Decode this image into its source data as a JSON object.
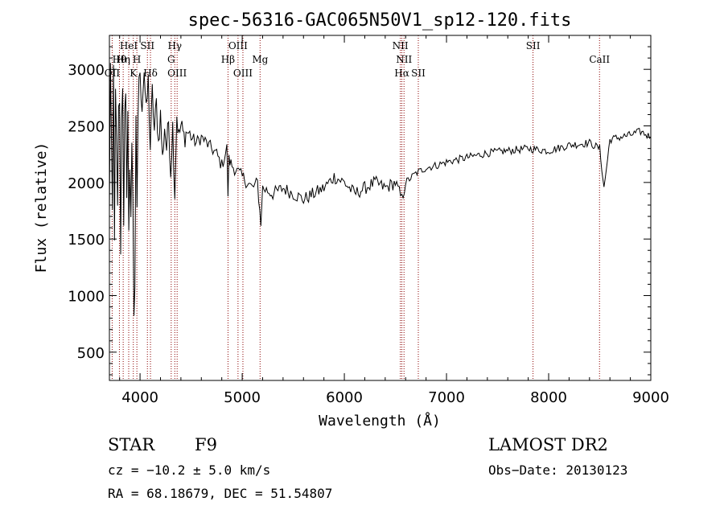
{
  "chart_data": {
    "type": "line",
    "title": "spec-56316-GAC065N50V1_sp12-120.fits",
    "xlabel": "Wavelength (Å)",
    "ylabel": "Flux (relative)",
    "xlim": [
      3700,
      9000
    ],
    "ylim": [
      250,
      3300
    ],
    "grid": false,
    "x_ticks": [
      4000,
      5000,
      6000,
      7000,
      8000,
      9000
    ],
    "x_tick_labels": [
      "4000",
      "5000",
      "6000",
      "7000",
      "8000",
      "9000"
    ],
    "y_ticks": [
      500,
      1000,
      1500,
      2000,
      2500,
      3000
    ],
    "y_tick_labels": [
      "500",
      "1000",
      "1500",
      "2000",
      "2500",
      "3000"
    ],
    "series": [
      {
        "x": [
          3700,
          3710,
          3720,
          3730,
          3740,
          3750,
          3760,
          3770,
          3780,
          3790,
          3800,
          3810,
          3820,
          3830,
          3840,
          3850,
          3860,
          3870,
          3880,
          3890,
          3900,
          3910,
          3920,
          3930,
          3940,
          3950,
          3960,
          3970,
          3980,
          3990,
          4000,
          4020,
          4040,
          4060,
          4080,
          4100,
          4120,
          4140,
          4160,
          4180,
          4200,
          4220,
          4240,
          4260,
          4280,
          4300,
          4320,
          4340,
          4360,
          4380,
          4400,
          4430,
          4460,
          4500,
          4550,
          4600,
          4650,
          4700,
          4750,
          4800,
          4850,
          4861,
          4870,
          4900,
          4950,
          5000,
          5050,
          5100,
          5150,
          5172,
          5183,
          5200,
          5300,
          5400,
          5500,
          5600,
          5700,
          5800,
          5900,
          6000,
          6100,
          6200,
          6300,
          6400,
          6500,
          6563,
          6600,
          6700,
          6800,
          6900,
          7000,
          7200,
          7400,
          7600,
          7800,
          8000,
          8200,
          8400,
          8500,
          8542,
          8600,
          8800,
          8900,
          9000
        ],
        "y": [
          1700,
          3100,
          2400,
          1650,
          3000,
          1450,
          2900,
          2300,
          1750,
          2600,
          2650,
          1400,
          2500,
          2900,
          1600,
          2700,
          2850,
          1800,
          2550,
          1500,
          2200,
          1700,
          2300,
          1900,
          870,
          1100,
          2500,
          1700,
          2600,
          2950,
          2900,
          2700,
          3000,
          2600,
          2900,
          2300,
          2800,
          2450,
          2700,
          2350,
          2600,
          2200,
          2500,
          2300,
          2550,
          2100,
          2500,
          1900,
          2600,
          2400,
          2500,
          2400,
          2450,
          2400,
          2350,
          2400,
          2350,
          2300,
          2250,
          2150,
          2300,
          1900,
          2200,
          2150,
          2100,
          2050,
          2000,
          1950,
          2000,
          1750,
          1650,
          1950,
          1900,
          1950,
          1900,
          1850,
          1900,
          1950,
          2050,
          2000,
          1900,
          1950,
          2000,
          1950,
          2000,
          1850,
          2000,
          2080,
          2130,
          2150,
          2180,
          2220,
          2260,
          2280,
          2300,
          2280,
          2330,
          2350,
          2300,
          1950,
          2380,
          2420,
          2450,
          2400
        ]
      }
    ],
    "line_annotations": [
      {
        "label": "OII",
        "wavelength": 3727,
        "row": 3
      },
      {
        "label": "Hθ",
        "wavelength": 3798,
        "row": 2
      },
      {
        "label": "Hη",
        "wavelength": 3835,
        "row": 2
      },
      {
        "label": "HeI",
        "wavelength": 3889,
        "row": 1
      },
      {
        "label": "K",
        "wavelength": 3934,
        "row": 3
      },
      {
        "label": "H",
        "wavelength": 3969,
        "row": 2
      },
      {
        "label": "SII",
        "wavelength": 4072,
        "row": 1
      },
      {
        "label": "Hδ",
        "wavelength": 4102,
        "row": 3
      },
      {
        "label": "Hγ",
        "wavelength": 4340,
        "row": 1
      },
      {
        "label": "G",
        "wavelength": 4305,
        "row": 2
      },
      {
        "label": "OIII",
        "wavelength": 4363,
        "row": 3
      },
      {
        "label": "OIII",
        "wavelength": 4959,
        "row": 1
      },
      {
        "label": "Hβ",
        "wavelength": 4861,
        "row": 2
      },
      {
        "label": "OIII",
        "wavelength": 5007,
        "row": 3
      },
      {
        "label": "Mg",
        "wavelength": 5175,
        "row": 2
      },
      {
        "label": "NII",
        "wavelength": 6548,
        "row": 1
      },
      {
        "label": "NII",
        "wavelength": 6584,
        "row": 2
      },
      {
        "label": "Hα",
        "wavelength": 6563,
        "row": 3
      },
      {
        "label": "SII",
        "wavelength": 6724,
        "row": 3
      },
      {
        "label": "SII",
        "wavelength": 7847,
        "row": 1
      },
      {
        "label": "CaII",
        "wavelength": 8498,
        "row": 2
      }
    ]
  },
  "info": {
    "object_class": "STAR",
    "subclass": "F9",
    "survey": "LAMOST DR2",
    "cz": "cz = −10.2 ± 5.0 km/s",
    "obs_date": "Obs−Date: 20130123",
    "coords": "RA =  68.18679, DEC =  51.54807"
  },
  "colors": {
    "spectrum": "#000000",
    "line_marker": "#8b0000",
    "axes": "#000000"
  }
}
